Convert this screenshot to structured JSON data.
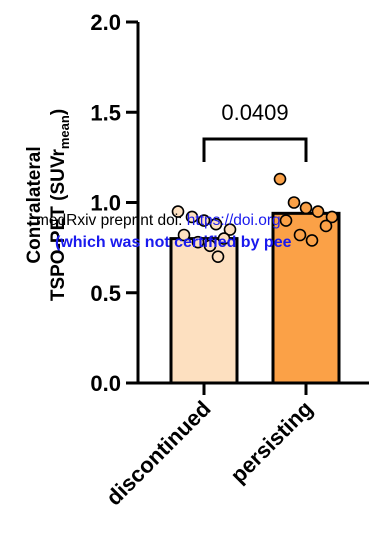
{
  "chart_data": {
    "type": "bar",
    "categories": [
      "discontinued",
      "persisting"
    ],
    "values": [
      0.8,
      0.94
    ],
    "bar_colors": [
      "#fde0c0",
      "#fba147"
    ],
    "points": [
      [
        0.95,
        0.92,
        0.9,
        0.88,
        0.85,
        0.82,
        0.8,
        0.78,
        0.76,
        0.7
      ],
      [
        1.13,
        1.0,
        0.97,
        0.95,
        0.92,
        0.9,
        0.87,
        0.82,
        0.79
      ]
    ],
    "ylabel_line1": "Contralateral",
    "ylabel_line2_prefix": "TSPO-PET (SUVr",
    "ylabel_subscript": "mean",
    "ylabel_line2_suffix": ")",
    "yticks": [
      "0.0",
      "0.5",
      "1.0",
      "1.5",
      "2.0"
    ],
    "ylim": [
      0,
      2.0
    ],
    "significance": {
      "pairs": [
        "discontinued",
        "persisting"
      ],
      "p_value": "0.0409"
    }
  },
  "watermark": {
    "line1_text": "medRxiv preprint doi: ",
    "line1_link": "https://doi.org",
    "line2_text": "(which was not certified by pee"
  }
}
